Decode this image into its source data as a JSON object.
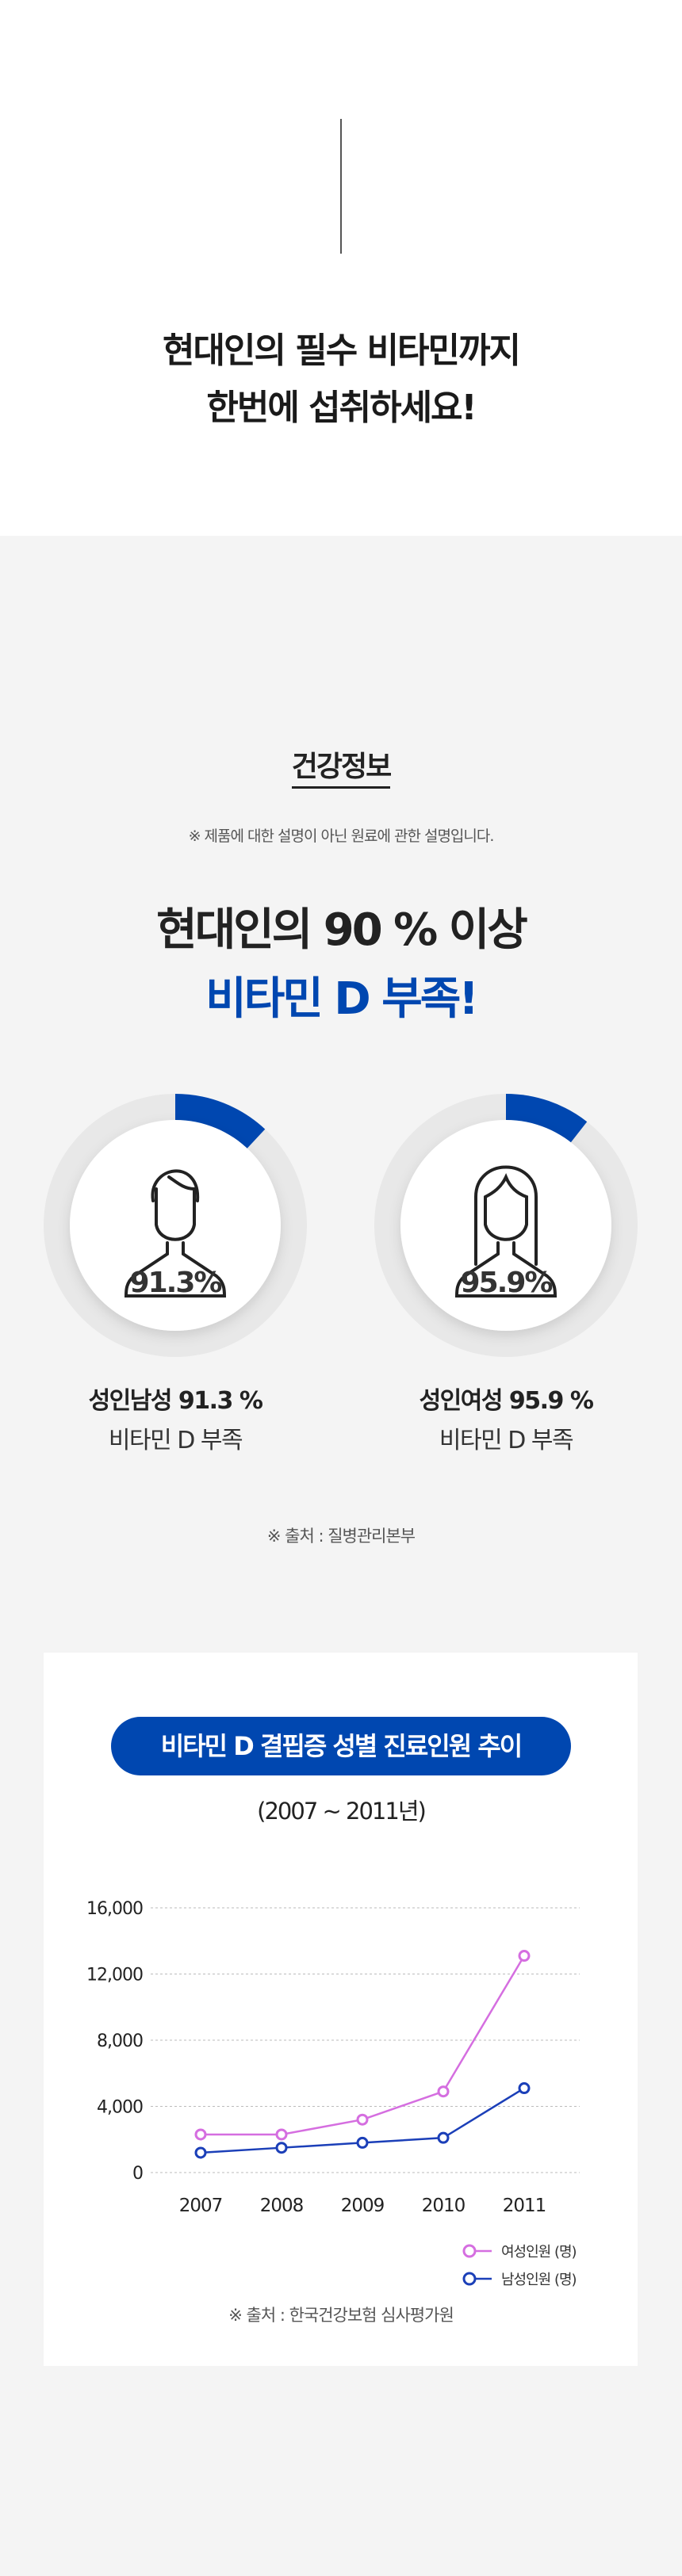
{
  "intro": {
    "title_line1": "현대인의 필수 비타민까지",
    "title_line2": "한번에 섭취하세요!"
  },
  "health": {
    "section_title": "건강정보",
    "note": "※ 제품에 대한 설명이 아닌 원료에 관한 설명입니다.",
    "headline_line1": "현대인의 90 % 이상",
    "headline_line2": "비타민 D 부족!",
    "stats": [
      {
        "icon": "man-icon",
        "value": 91.3,
        "value_label": "91.3%",
        "label": "성인남성 91.3 %",
        "sub": "비타민 D 부족"
      },
      {
        "icon": "woman-icon",
        "value": 95.9,
        "value_label": "95.9%",
        "label": "성인여성 95.9 %",
        "sub": "비타민 D 부족"
      }
    ],
    "source": "※ 출처 : 질병관리본부"
  },
  "colors": {
    "accent": "#0047b0",
    "female": "#d56ee0",
    "male": "#1b3fb8",
    "ring": "#e8e8e8"
  },
  "chart_data": {
    "type": "line",
    "title": "비타민 D 결핍증 성별 진료인원 추이",
    "subtitle": "(2007 ~ 2011년)",
    "x": [
      "2007",
      "2008",
      "2009",
      "2010",
      "2011"
    ],
    "yticks": [
      "16,000",
      "12,000",
      "8,000",
      "4,000",
      "0"
    ],
    "ylim": [
      0,
      16000
    ],
    "grid": true,
    "legend": "bottom-right",
    "series": [
      {
        "name": "여성인원 (명)",
        "values": [
          2300,
          2300,
          3200,
          4900,
          13100
        ]
      },
      {
        "name": "남성인원 (명)",
        "values": [
          1200,
          1500,
          1800,
          2100,
          5100
        ]
      }
    ],
    "source": "※ 출처 : 한국건강보험 심사평가원"
  }
}
